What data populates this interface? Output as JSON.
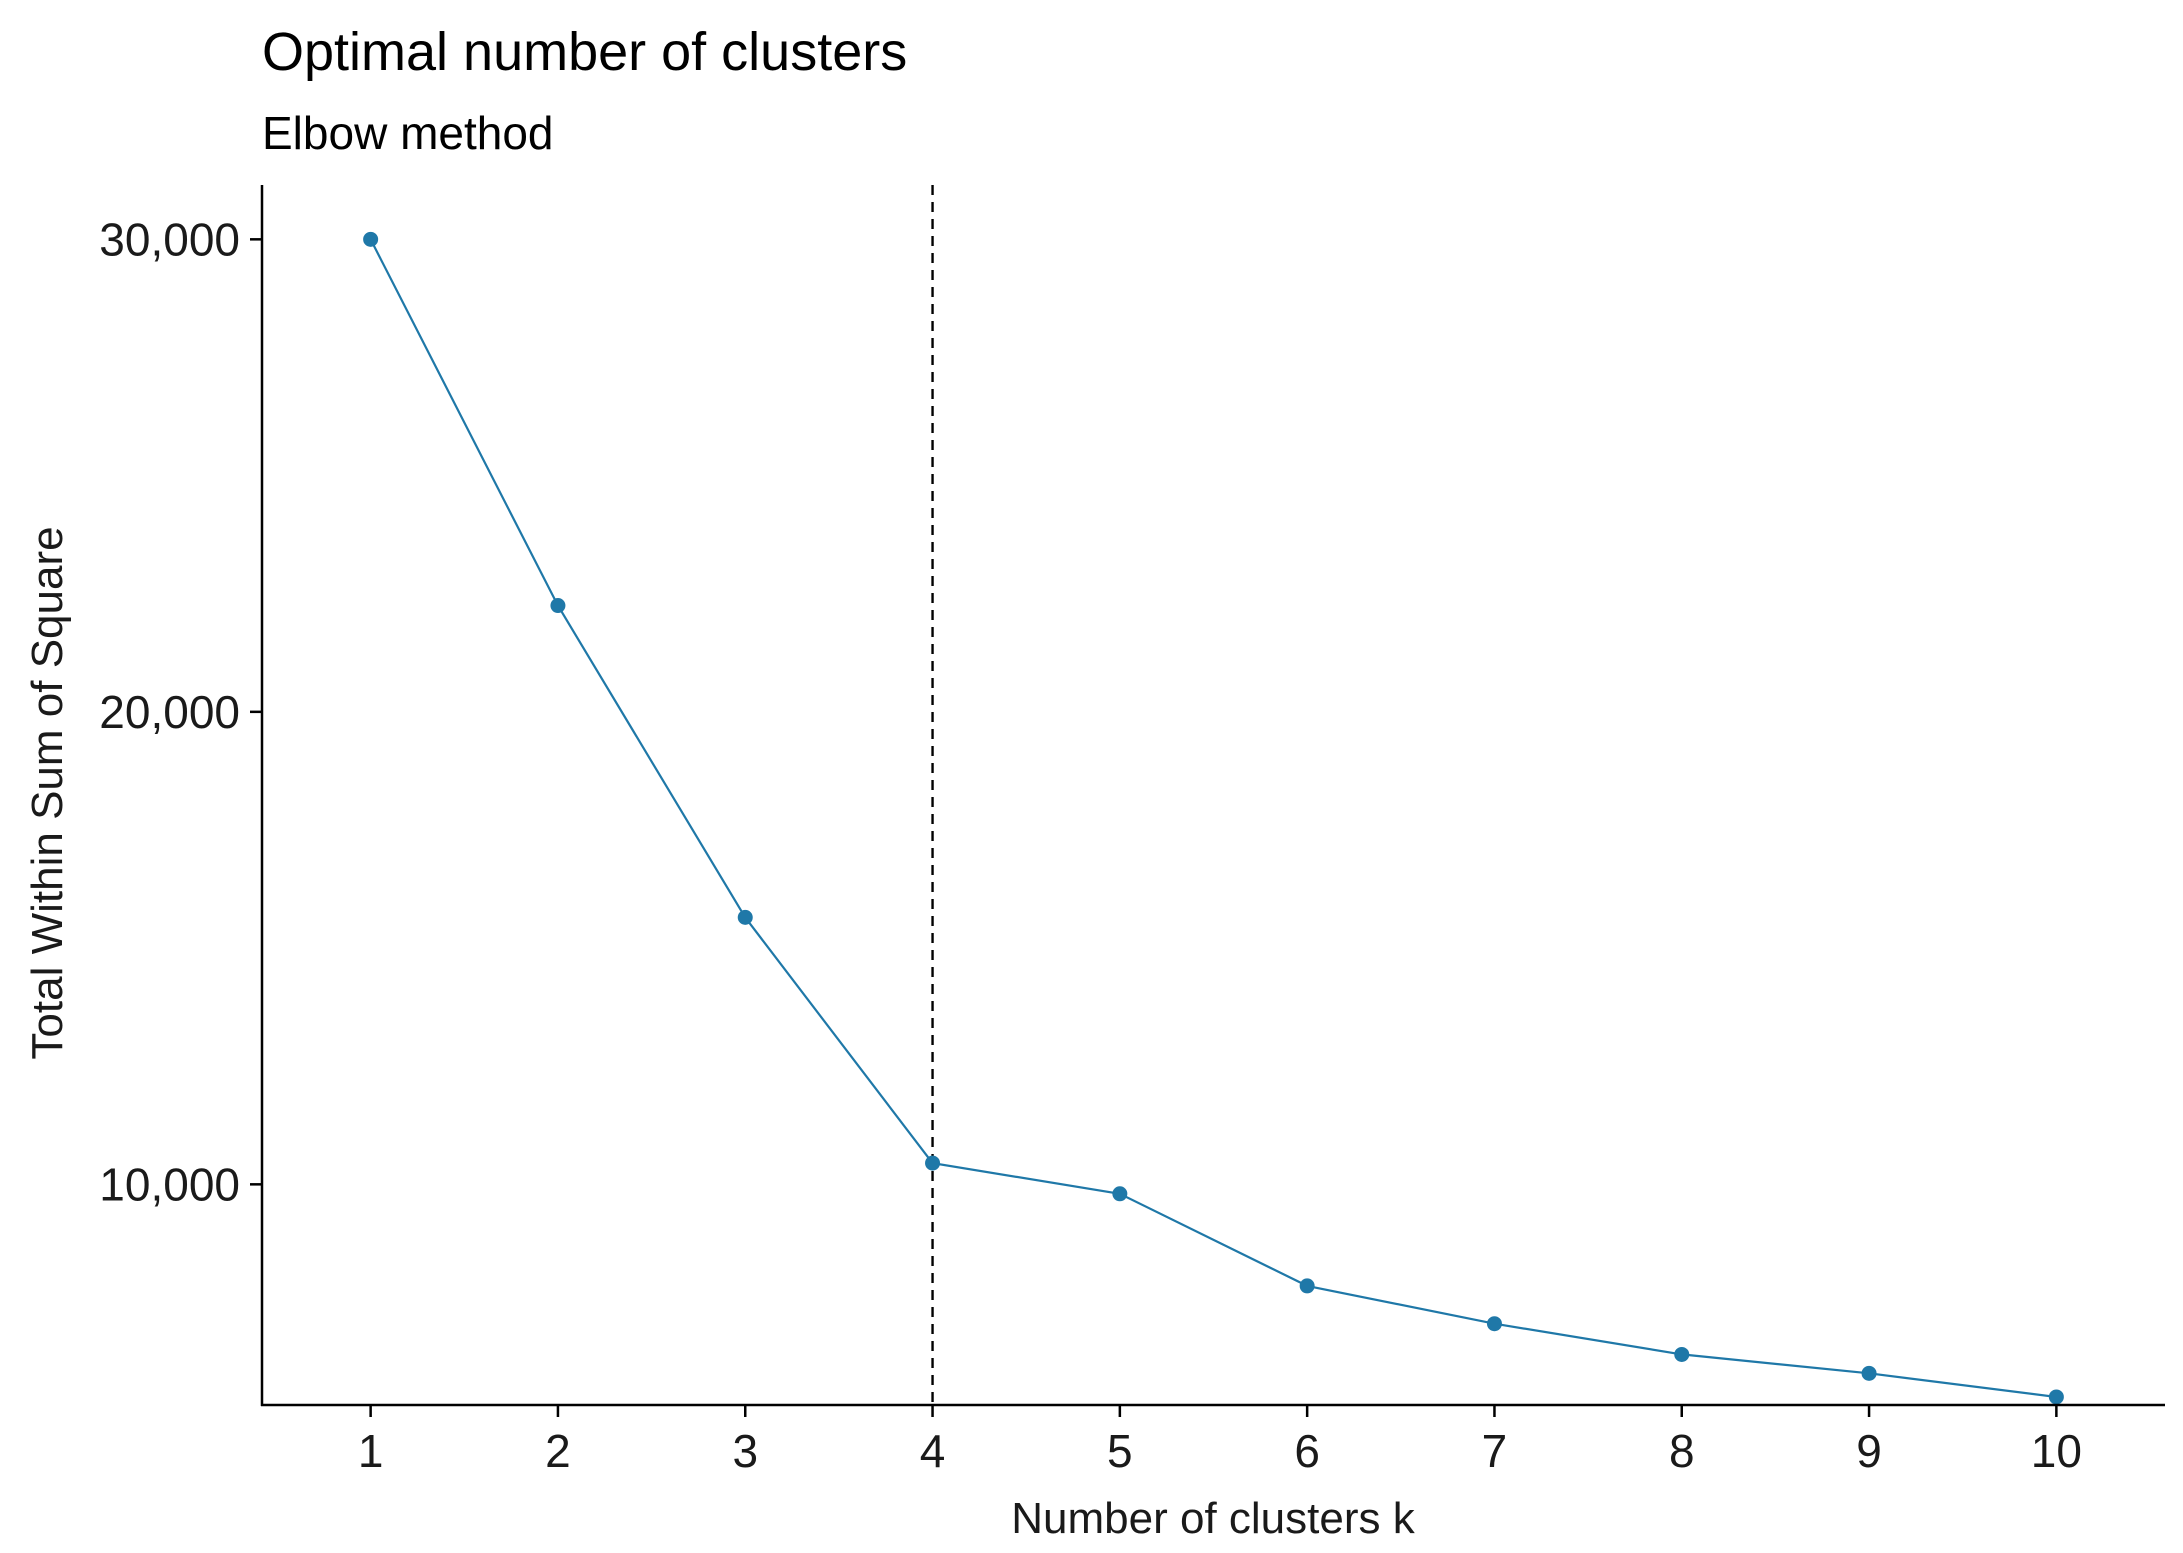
{
  "chart_data": {
    "type": "line",
    "title": "Optimal number of clusters",
    "subtitle": "Elbow method",
    "xlabel": "Number of clusters k",
    "ylabel": "Total Within Sum of Square",
    "x": [
      1,
      2,
      3,
      4,
      5,
      6,
      7,
      8,
      9,
      10
    ],
    "x_tick_labels": [
      "1",
      "2",
      "3",
      "4",
      "5",
      "6",
      "7",
      "8",
      "9",
      "10"
    ],
    "y_ticks": [
      10000,
      20000,
      30000
    ],
    "y_tick_labels": [
      "10,000",
      "20,000",
      "30,000"
    ],
    "series": [
      {
        "values": [
          30000,
          22250,
          15650,
          10450,
          9800,
          7850,
          7050,
          6400,
          6000,
          5500
        ]
      }
    ],
    "xlim": [
      0.42,
      10.58
    ],
    "ylim": [
      5330,
      31150
    ],
    "vline_x": 4,
    "grid": false,
    "legend": "none",
    "colors": {
      "series": "#1f78a8",
      "vline": "#000000",
      "axis": "#000000"
    }
  }
}
